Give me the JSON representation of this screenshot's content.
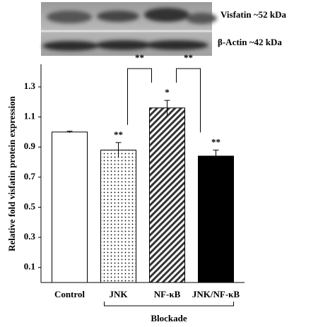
{
  "blot": {
    "labels": [
      "Visfatin ~52 kDa",
      "β-Actin ~42 kDa"
    ]
  },
  "chart_data": {
    "type": "bar",
    "y_label": "Relative fold visfatin protein expression",
    "categories": [
      "Control",
      "JNK",
      "NF-κB",
      "JNK/NF-κB"
    ],
    "values": [
      1.0,
      0.88,
      1.16,
      0.84
    ],
    "errors": [
      0.005,
      0.05,
      0.05,
      0.04
    ],
    "fills": [
      "white",
      "dots",
      "hatch",
      "black"
    ],
    "bar_labels": [
      null,
      "**",
      "*",
      "**"
    ],
    "comparisons": [
      {
        "label": "**",
        "from": "JNK",
        "to": "NF-κB"
      },
      {
        "label": "**",
        "from": "NF-κB",
        "to": "JNK/NF-κB"
      }
    ],
    "group": {
      "label": "Blockade",
      "from": "JNK",
      "to": "JNK/NF-κB"
    },
    "ylim": [
      0,
      1.45
    ],
    "yticks": [
      0.1,
      0.3,
      0.5,
      0.7,
      0.9,
      1.1,
      1.3
    ],
    "grid": false
  }
}
